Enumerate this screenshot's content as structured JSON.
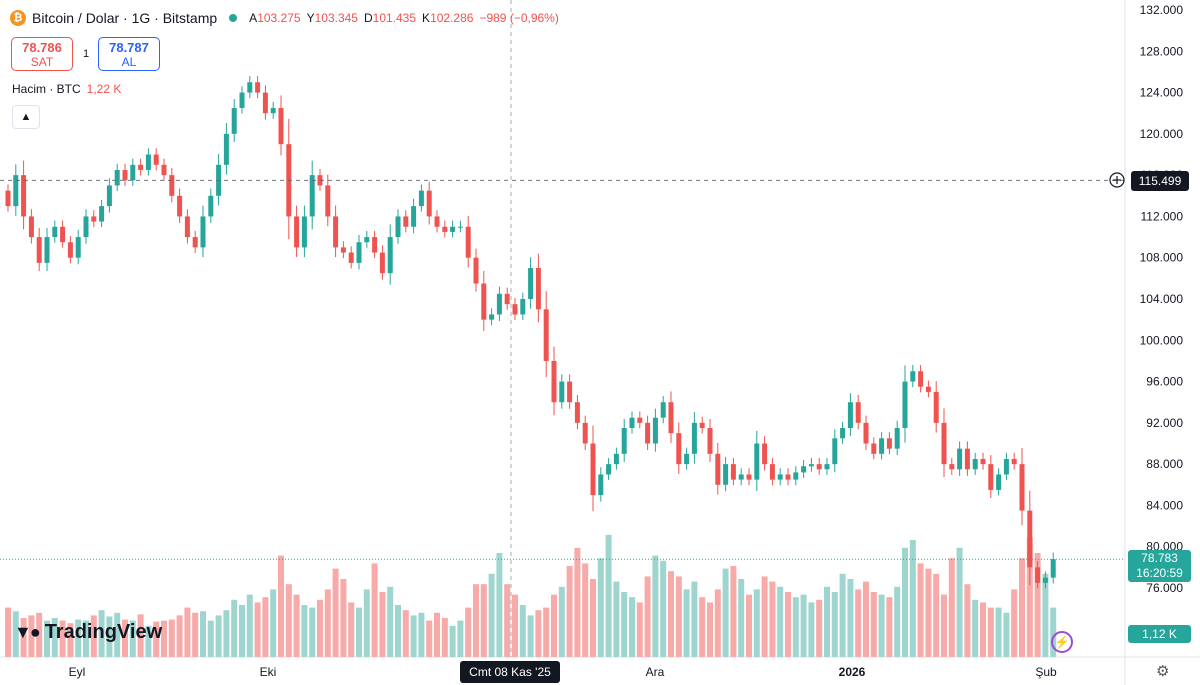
{
  "header": {
    "symbol_icon": "bitcoin-icon",
    "title": "Bitcoin / Dolar · 1G · Bitstamp",
    "open_label": "A",
    "open": "103.275",
    "high_label": "Y",
    "high": "103.345",
    "low_label": "D",
    "low": "101.435",
    "close_label": "K",
    "close": "102.286",
    "change": "−989 (−0,96%)"
  },
  "trade": {
    "sell_price": "78.786",
    "sell_label": "SAT",
    "spread": "1",
    "buy_price": "78.787",
    "buy_label": "AL"
  },
  "volume_legend": {
    "label": "Hacim · BTC",
    "value": "1,22 K"
  },
  "crosshair": {
    "price": "115.499",
    "date": "Cmt 08 Kas '25"
  },
  "last_price": {
    "price": "78.783",
    "countdown": "16:20:59",
    "volume": "1,12 K"
  },
  "branding": {
    "name": "TradingView"
  },
  "colors": {
    "up": "#26a69a",
    "down": "#ef5350",
    "up_volume": "#9fd5cf",
    "down_volume": "#f7aaa8"
  },
  "chart_data": {
    "type": "candlestick",
    "title": "Bitcoin / Dolar · 1G · Bitstamp",
    "ylim": [
      74000,
      132000
    ],
    "y_ticks": [
      "132.000",
      "128.000",
      "124.000",
      "120.000",
      "116.000",
      "112.000",
      "108.000",
      "104.000",
      "100.000",
      "96.000",
      "92.000",
      "88.000",
      "84.000",
      "80.000",
      "76.000"
    ],
    "x_ticks": [
      "Eyl",
      "Eki",
      "Ara",
      "2026",
      "Şub"
    ],
    "grid": false,
    "close": [
      113000,
      116000,
      112000,
      110000,
      107500,
      110000,
      111000,
      109500,
      108000,
      110000,
      112000,
      111500,
      113000,
      115000,
      116500,
      115500,
      117000,
      116500,
      118000,
      117000,
      116000,
      114000,
      112000,
      110000,
      109000,
      112000,
      114000,
      117000,
      120000,
      122500,
      124000,
      125000,
      124000,
      122000,
      122500,
      119000,
      112000,
      109000,
      112000,
      116000,
      115000,
      112000,
      109000,
      108500,
      107500,
      109500,
      110000,
      108500,
      106500,
      110000,
      112000,
      111000,
      113000,
      114500,
      112000,
      111000,
      110500,
      111000,
      111000,
      108000,
      105500,
      102000,
      102500,
      104500,
      103500,
      102500,
      104000,
      107000,
      103000,
      98000,
      94000,
      96000,
      94000,
      92000,
      90000,
      85000,
      87000,
      88000,
      89000,
      91500,
      92500,
      92000,
      90000,
      92500,
      94000,
      91000,
      88000,
      89000,
      92000,
      91500,
      89000,
      86000,
      88000,
      86500,
      87000,
      86500,
      90000,
      88000,
      86500,
      87000,
      86500,
      87200,
      87800,
      88000,
      87500,
      88000,
      90500,
      91500,
      94000,
      92000,
      90000,
      89000,
      90500,
      89500,
      91500,
      96000,
      97000,
      95500,
      95000,
      92000,
      88000,
      87500,
      89500,
      87500,
      88500,
      88000,
      85500,
      87000,
      88500,
      88000,
      83500,
      78000,
      76500,
      77000,
      78800
    ],
    "volume": [
      0.95,
      0.88,
      0.75,
      0.8,
      0.85,
      0.7,
      0.75,
      0.7,
      0.65,
      0.72,
      0.7,
      0.8,
      0.9,
      0.78,
      0.85,
      0.72,
      0.7,
      0.82,
      0.6,
      0.68,
      0.7,
      0.72,
      0.8,
      0.95,
      0.85,
      0.88,
      0.7,
      0.8,
      0.9,
      1.1,
      1.0,
      1.2,
      1.05,
      1.15,
      1.3,
      1.95,
      1.4,
      1.2,
      1.0,
      0.95,
      1.1,
      1.3,
      1.7,
      1.5,
      1.05,
      0.95,
      1.3,
      1.8,
      1.25,
      1.35,
      1.0,
      0.9,
      0.8,
      0.85,
      0.7,
      0.85,
      0.75,
      0.6,
      0.7,
      0.95,
      1.4,
      1.4,
      1.6,
      2.0,
      1.4,
      1.2,
      1.0,
      0.8,
      0.9,
      0.95,
      1.2,
      1.35,
      1.75,
      2.1,
      1.8,
      1.5,
      1.9,
      2.35,
      1.45,
      1.25,
      1.15,
      1.05,
      1.55,
      1.95,
      1.85,
      1.65,
      1.55,
      1.3,
      1.45,
      1.15,
      1.05,
      1.3,
      1.7,
      1.75,
      1.5,
      1.2,
      1.3,
      1.55,
      1.45,
      1.35,
      1.25,
      1.15,
      1.2,
      1.05,
      1.1,
      1.35,
      1.25,
      1.6,
      1.5,
      1.3,
      1.45,
      1.25,
      1.2,
      1.15,
      1.35,
      2.1,
      2.25,
      1.8,
      1.7,
      1.6,
      1.2,
      1.9,
      2.1,
      1.4,
      1.1,
      1.05,
      0.95,
      0.95,
      0.85,
      1.3,
      1.9,
      2.3,
      2.0,
      1.6,
      0.95
    ]
  }
}
